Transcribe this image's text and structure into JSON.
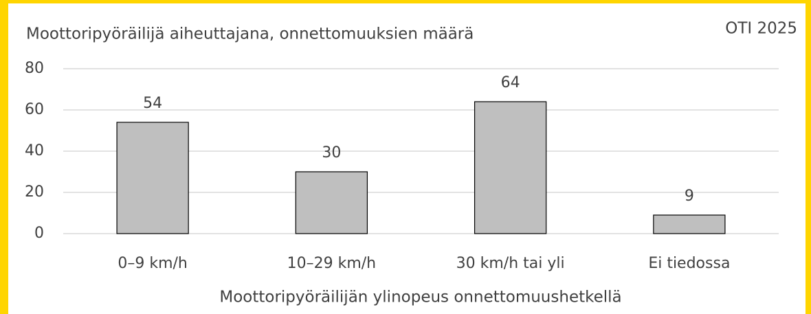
{
  "chart_data": {
    "type": "bar",
    "title": "Moottoripyöräilijä aiheuttajana, onnettomuuksien määrä",
    "annotation": "OTI 2025",
    "xlabel": "Moottoripyöräilijän ylinopeus onnettomuushetkellä",
    "categories": [
      "0–9 km/h",
      "10–29 km/h",
      "30 km/h tai yli",
      "Ei tiedossa"
    ],
    "values": [
      54,
      30,
      64,
      9
    ],
    "color": "#bfbfbf",
    "ylim": [
      0,
      80
    ],
    "yticks": [
      0,
      20,
      40,
      60,
      80
    ],
    "grid": true
  }
}
